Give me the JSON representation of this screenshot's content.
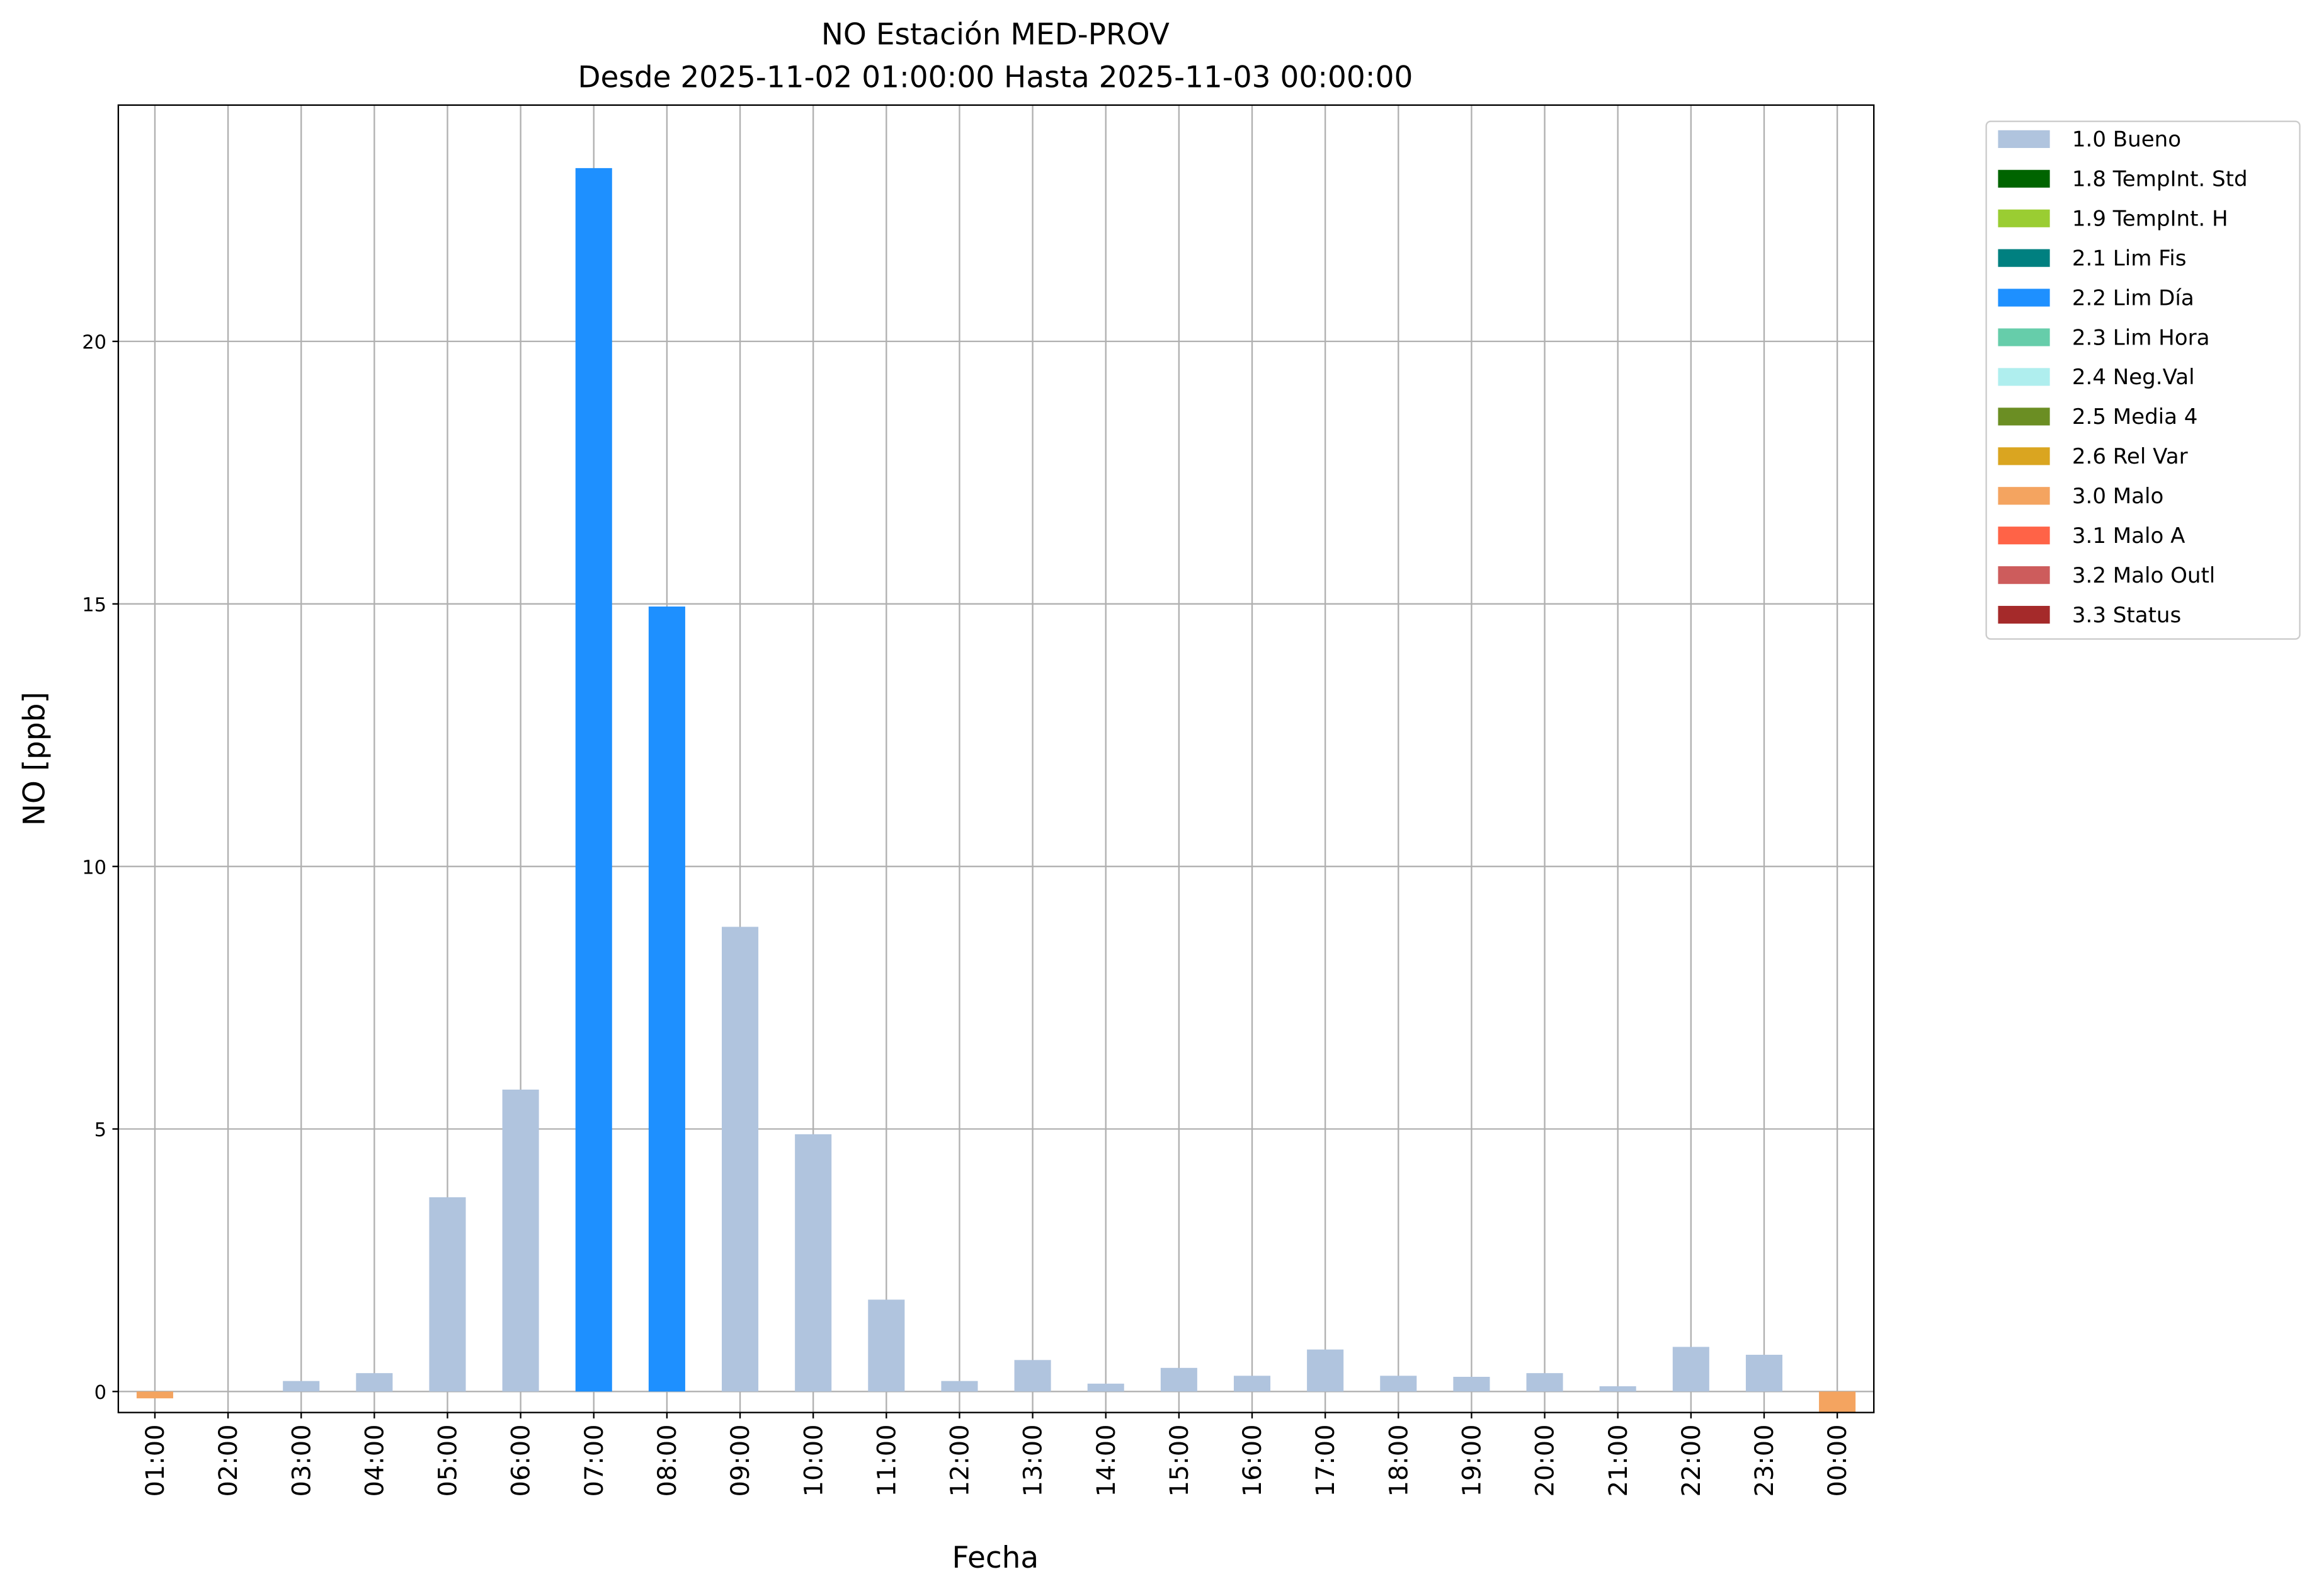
{
  "chart_data": {
    "type": "bar",
    "title": "NO Estación MED-PROV",
    "subtitle": "Desde 2025-11-02 01:00:00 Hasta 2025-11-03 00:00:00",
    "x_label": "Fecha",
    "y_label": "NO [ppb]",
    "categories": [
      "01:00",
      "02:00",
      "03:00",
      "04:00",
      "05:00",
      "06:00",
      "07:00",
      "08:00",
      "09:00",
      "10:00",
      "11:00",
      "12:00",
      "13:00",
      "14:00",
      "15:00",
      "16:00",
      "17:00",
      "18:00",
      "19:00",
      "20:00",
      "21:00",
      "22:00",
      "23:00",
      "00:00"
    ],
    "ylim": [
      -0.4,
      24.5
    ],
    "yticks": [
      0,
      5,
      10,
      15,
      20
    ],
    "grid": true,
    "series": [
      {
        "name": "1.0 Bueno",
        "color": "#b0c4de",
        "values": [
          null,
          null,
          0.2,
          0.35,
          3.7,
          5.75,
          null,
          null,
          8.85,
          4.9,
          1.75,
          0.2,
          0.6,
          0.15,
          0.45,
          0.3,
          0.8,
          0.3,
          0.28,
          0.35,
          0.1,
          0.85,
          0.7,
          null
        ]
      },
      {
        "name": "1.8 TempInt. Std",
        "color": "#006400",
        "values": [
          null,
          null,
          null,
          null,
          null,
          null,
          null,
          null,
          null,
          null,
          null,
          null,
          null,
          null,
          null,
          null,
          null,
          null,
          null,
          null,
          null,
          null,
          null,
          null
        ]
      },
      {
        "name": "1.9 TempInt. H",
        "color": "#9acd32",
        "values": [
          null,
          null,
          null,
          null,
          null,
          null,
          null,
          null,
          null,
          null,
          null,
          null,
          null,
          null,
          null,
          null,
          null,
          null,
          null,
          null,
          null,
          null,
          null,
          null
        ]
      },
      {
        "name": "2.1 Lim Fis",
        "color": "#008080",
        "values": [
          null,
          null,
          null,
          null,
          null,
          null,
          null,
          null,
          null,
          null,
          null,
          null,
          null,
          null,
          null,
          null,
          null,
          null,
          null,
          null,
          null,
          null,
          null,
          null
        ]
      },
      {
        "name": "2.2 Lim Día",
        "color": "#1e90ff",
        "values": [
          null,
          null,
          null,
          null,
          null,
          null,
          23.3,
          14.95,
          null,
          null,
          null,
          null,
          null,
          null,
          null,
          null,
          null,
          null,
          null,
          null,
          null,
          null,
          null,
          null
        ]
      },
      {
        "name": "2.3 Lim Hora",
        "color": "#66cdaa",
        "values": [
          null,
          null,
          null,
          null,
          null,
          null,
          null,
          null,
          null,
          null,
          null,
          null,
          null,
          null,
          null,
          null,
          null,
          null,
          null,
          null,
          null,
          null,
          null,
          null
        ]
      },
      {
        "name": "2.4 Neg.Val",
        "color": "#afeeee",
        "values": [
          null,
          null,
          null,
          null,
          null,
          null,
          null,
          null,
          null,
          null,
          null,
          null,
          null,
          null,
          null,
          null,
          null,
          null,
          null,
          null,
          null,
          null,
          null,
          null
        ]
      },
      {
        "name": "2.5 Media 4",
        "color": "#6b8e23",
        "values": [
          null,
          null,
          null,
          null,
          null,
          null,
          null,
          null,
          null,
          null,
          null,
          null,
          null,
          null,
          null,
          null,
          null,
          null,
          null,
          null,
          null,
          null,
          null,
          null
        ]
      },
      {
        "name": "2.6 Rel Var",
        "color": "#daa520",
        "values": [
          null,
          null,
          null,
          null,
          null,
          null,
          null,
          null,
          null,
          null,
          null,
          null,
          null,
          null,
          null,
          null,
          null,
          null,
          null,
          null,
          null,
          null,
          null,
          null
        ]
      },
      {
        "name": "3.0 Malo",
        "color": "#f4a460",
        "values": [
          -0.13,
          null,
          null,
          null,
          null,
          null,
          null,
          null,
          null,
          null,
          null,
          null,
          null,
          null,
          null,
          null,
          null,
          null,
          null,
          null,
          null,
          null,
          null,
          -0.5
        ]
      },
      {
        "name": "3.1 Malo A",
        "color": "#ff6347",
        "values": [
          null,
          null,
          null,
          null,
          null,
          null,
          null,
          null,
          null,
          null,
          null,
          null,
          null,
          null,
          null,
          null,
          null,
          null,
          null,
          null,
          null,
          null,
          null,
          null
        ]
      },
      {
        "name": "3.2 Malo Outl",
        "color": "#cd5c5c",
        "values": [
          null,
          null,
          null,
          null,
          null,
          null,
          null,
          null,
          null,
          null,
          null,
          null,
          null,
          null,
          null,
          null,
          null,
          null,
          null,
          null,
          null,
          null,
          null,
          null
        ]
      },
      {
        "name": "3.3 Status",
        "color": "#a52a2a",
        "values": [
          null,
          null,
          null,
          null,
          null,
          null,
          null,
          null,
          null,
          null,
          null,
          null,
          null,
          null,
          null,
          null,
          null,
          null,
          null,
          null,
          null,
          null,
          null,
          null
        ]
      }
    ]
  }
}
